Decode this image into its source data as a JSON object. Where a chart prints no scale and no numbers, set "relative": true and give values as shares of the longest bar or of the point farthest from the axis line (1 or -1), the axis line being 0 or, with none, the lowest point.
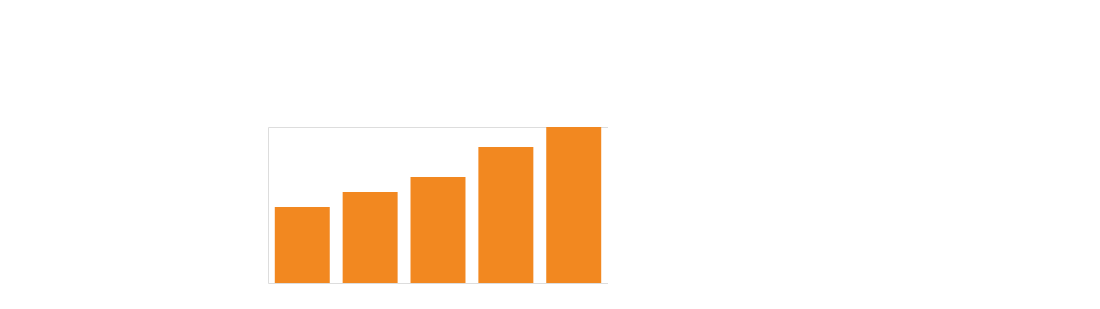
{
  "chart_data": {
    "type": "bar",
    "relative": true,
    "categories": [
      null,
      null,
      null,
      null,
      null
    ],
    "values": [
      0.487,
      0.583,
      0.679,
      0.872,
      1
    ],
    "color": "#f28820"
  }
}
